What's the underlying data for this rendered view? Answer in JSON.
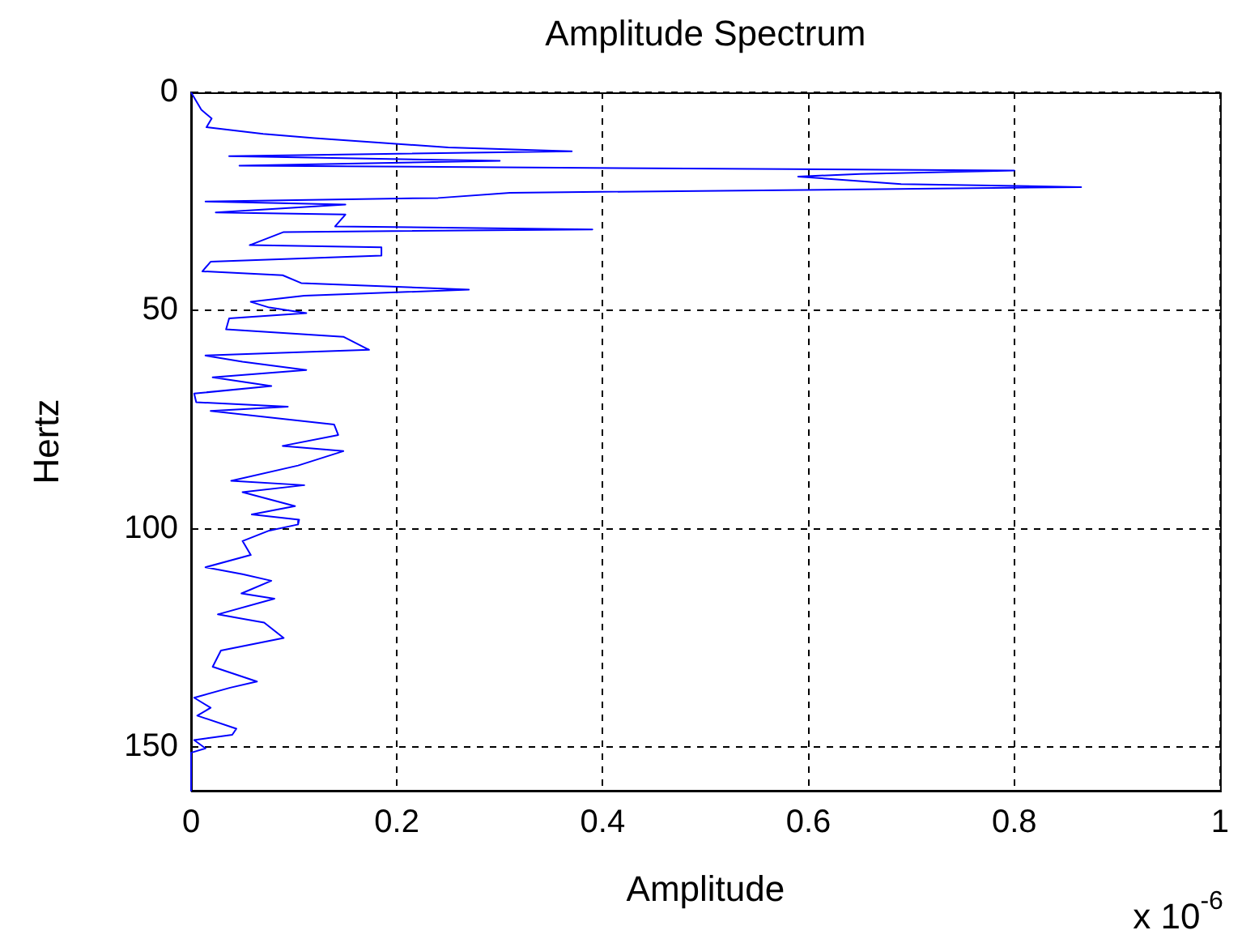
{
  "chart_data": {
    "type": "line",
    "title": "Amplitude Spectrum",
    "xlabel": "Amplitude",
    "ylabel": "Hertz",
    "orientation": "horizontal",
    "color": "#0000ff",
    "x": [
      0,
      2,
      4,
      6,
      8,
      9.5,
      10.5,
      12.6,
      13.5,
      14.6,
      15.7,
      16.8,
      17.9,
      18.7,
      19.3,
      21,
      21.7,
      22.3,
      23,
      24.2,
      25,
      25.7,
      27.5,
      28,
      30.7,
      31.4,
      32,
      35,
      35.5,
      37.4,
      38.8,
      41,
      41.9,
      43.7,
      45.2,
      46.6,
      48,
      49.3,
      50.6,
      51.8,
      54.3,
      56,
      59,
      60.3,
      61.7,
      63.6,
      65.3,
      67.3,
      69,
      71,
      72,
      73,
      76.1,
      78.5,
      81,
      82.2,
      85.5,
      89,
      90,
      91.6,
      94.8,
      96.7,
      97.9,
      99,
      100.4,
      102.8,
      106,
      108.8,
      110.4,
      111.9,
      114.8,
      116,
      119.6,
      121.5,
      125,
      127.9,
      131.6,
      135,
      136.4,
      138.7,
      141,
      142.8,
      145.8,
      147.2,
      148.4,
      150.3,
      151.3,
      160
    ],
    "values": [
      0,
      0.005,
      0.01,
      0.02,
      0.015,
      0.07,
      0.12,
      0.25,
      0.37,
      0.037,
      0.3,
      0.047,
      0.8,
      0.65,
      0.59,
      0.69,
      0.865,
      0.615,
      0.31,
      0.24,
      0.014,
      0.15,
      0.024,
      0.15,
      0.14,
      0.39,
      0.09,
      0.057,
      0.185,
      0.185,
      0.019,
      0.011,
      0.089,
      0.107,
      0.27,
      0.11,
      0.058,
      0.076,
      0.112,
      0.037,
      0.034,
      0.148,
      0.173,
      0.014,
      0.05,
      0.112,
      0.021,
      0.078,
      0.003,
      0.005,
      0.094,
      0.019,
      0.139,
      0.143,
      0.089,
      0.148,
      0.104,
      0.039,
      0.11,
      0.05,
      0.101,
      0.059,
      0.105,
      0.104,
      0.076,
      0.05,
      0.058,
      0.014,
      0.05,
      0.078,
      0.049,
      0.081,
      0.026,
      0.071,
      0.09,
      0.029,
      0.021,
      0.064,
      0.038,
      0.003,
      0.019,
      0.006,
      0.044,
      0.04,
      0.003,
      0.014,
      0,
      0
    ],
    "xlim": [
      0,
      1
    ],
    "xticks": [
      0,
      0.2,
      0.4,
      0.6,
      0.8,
      1
    ],
    "ylim": [
      160,
      0
    ],
    "yticks": [
      0,
      50,
      100,
      150
    ],
    "grid": true,
    "marker": "none",
    "line_style": "solid",
    "annotations": [
      "x 10$^{-6}$"
    ]
  }
}
